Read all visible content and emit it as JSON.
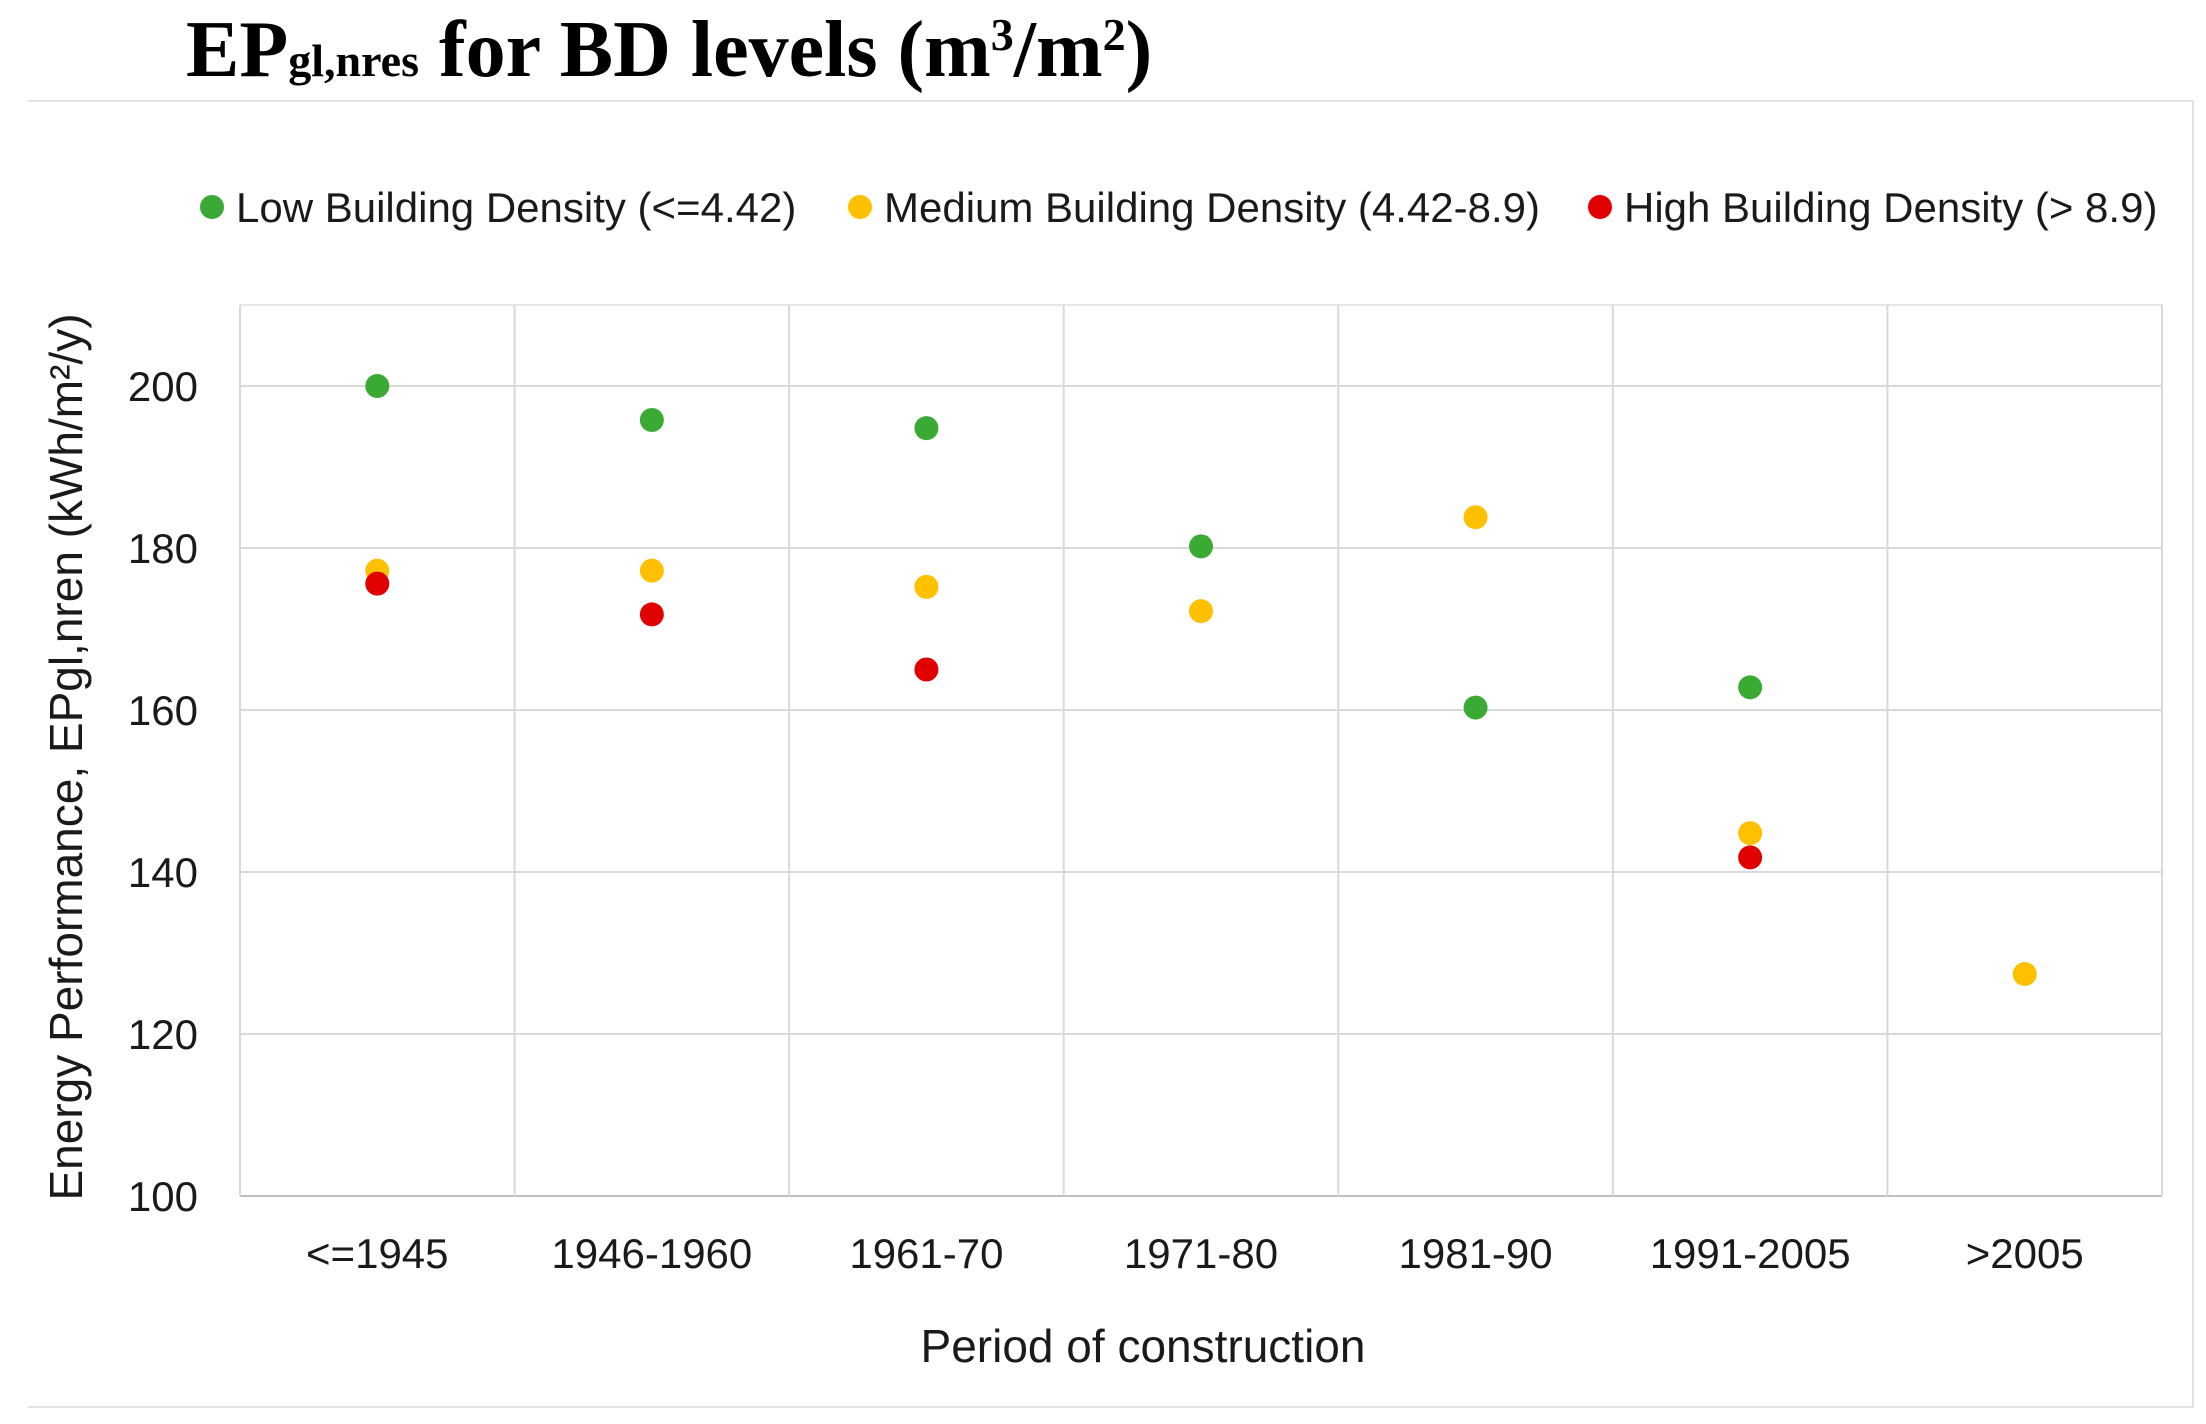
{
  "title": {
    "main": "EP",
    "subscript": "gl,nres",
    "middle": " for BD levels (m",
    "sup1": "3",
    "slash": "/m",
    "sup2": "2",
    "end": ")"
  },
  "chart_data": {
    "type": "scatter",
    "categories": [
      "<=1945",
      "1946-1960",
      "1961-70",
      "1971-80",
      "1981-90",
      "1991-2005",
      ">2005"
    ],
    "xlabel": "Period of construction",
    "ylabel": "Energy Performance, EPgl,nren  (kWh/m²/y)",
    "ylim": [
      100,
      210
    ],
    "yticks": [
      100,
      120,
      140,
      160,
      180,
      200
    ],
    "grid": true,
    "legend_position": "top",
    "series": [
      {
        "name": "Low Building Density (<=4.42)",
        "color": "#3aaa35",
        "values": [
          200,
          195.8,
          194.8,
          180.2,
          160.3,
          162.8,
          null
        ]
      },
      {
        "name": "Medium Building Density (4.42-8.9)",
        "color": "#ffc000",
        "values": [
          177.2,
          177.2,
          175.2,
          172.2,
          183.8,
          144.8,
          127.4
        ]
      },
      {
        "name": "High Building Density (> 8.9)",
        "color": "#e00000",
        "values": [
          175.6,
          171.8,
          165,
          null,
          null,
          141.8,
          null
        ]
      }
    ]
  }
}
